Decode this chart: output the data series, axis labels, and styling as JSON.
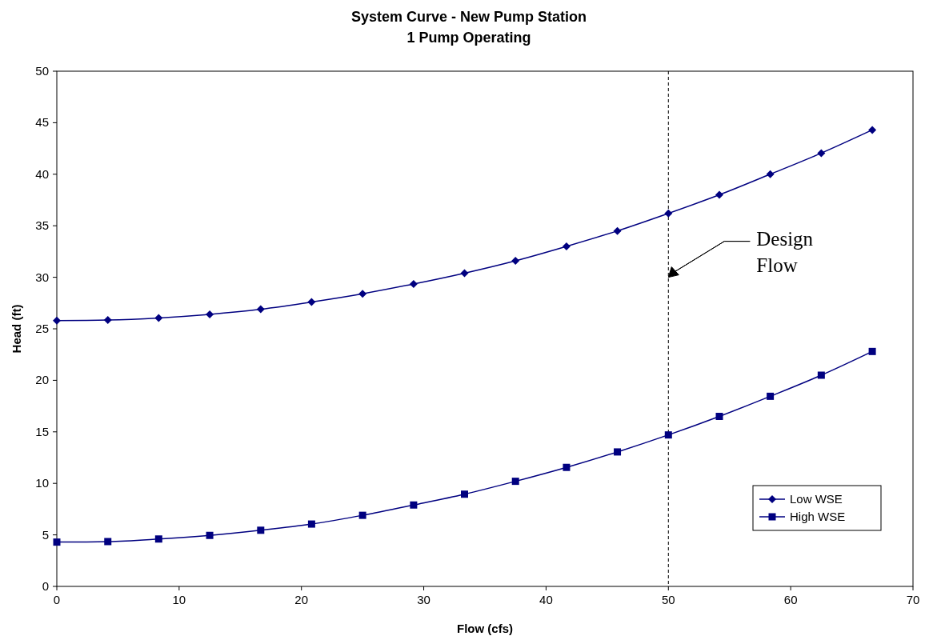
{
  "chart_data": {
    "type": "line",
    "title": "System Curve - New Pump Station",
    "subtitle": "1 Pump Operating",
    "xlabel": "Flow (cfs)",
    "ylabel": "Head (ft)",
    "x": [
      0,
      4.17,
      8.33,
      12.5,
      16.67,
      20.83,
      25,
      29.17,
      33.33,
      37.5,
      41.67,
      45.83,
      50,
      54.17,
      58.33,
      62.5,
      66.67
    ],
    "series": [
      {
        "name": "Low WSE",
        "color": "#000080",
        "marker": "diamond",
        "values": [
          25.8,
          25.85,
          26.05,
          26.4,
          26.9,
          27.6,
          28.4,
          29.35,
          30.4,
          31.6,
          33.0,
          34.5,
          36.2,
          38.0,
          40.0,
          42.05,
          44.3
        ]
      },
      {
        "name": "High WSE",
        "color": "#000080",
        "marker": "square",
        "values": [
          4.3,
          4.35,
          4.6,
          4.95,
          5.45,
          6.05,
          6.9,
          7.9,
          8.95,
          10.2,
          11.55,
          13.05,
          14.7,
          16.5,
          18.45,
          20.5,
          22.8
        ]
      }
    ],
    "xlim": [
      0,
      70
    ],
    "xticks": [
      0,
      10,
      20,
      30,
      40,
      50,
      60,
      70
    ],
    "ylim": [
      0,
      50
    ],
    "yticks": [
      0,
      5,
      10,
      15,
      20,
      25,
      30,
      35,
      40,
      45,
      50
    ],
    "ref_lines": [
      {
        "axis": "x",
        "value": 50,
        "color": "#000000",
        "line_style": "dashed"
      }
    ],
    "annotations": [
      "Design Flow"
    ],
    "grid": false,
    "legend": "bottom right",
    "line_style": "solid"
  }
}
